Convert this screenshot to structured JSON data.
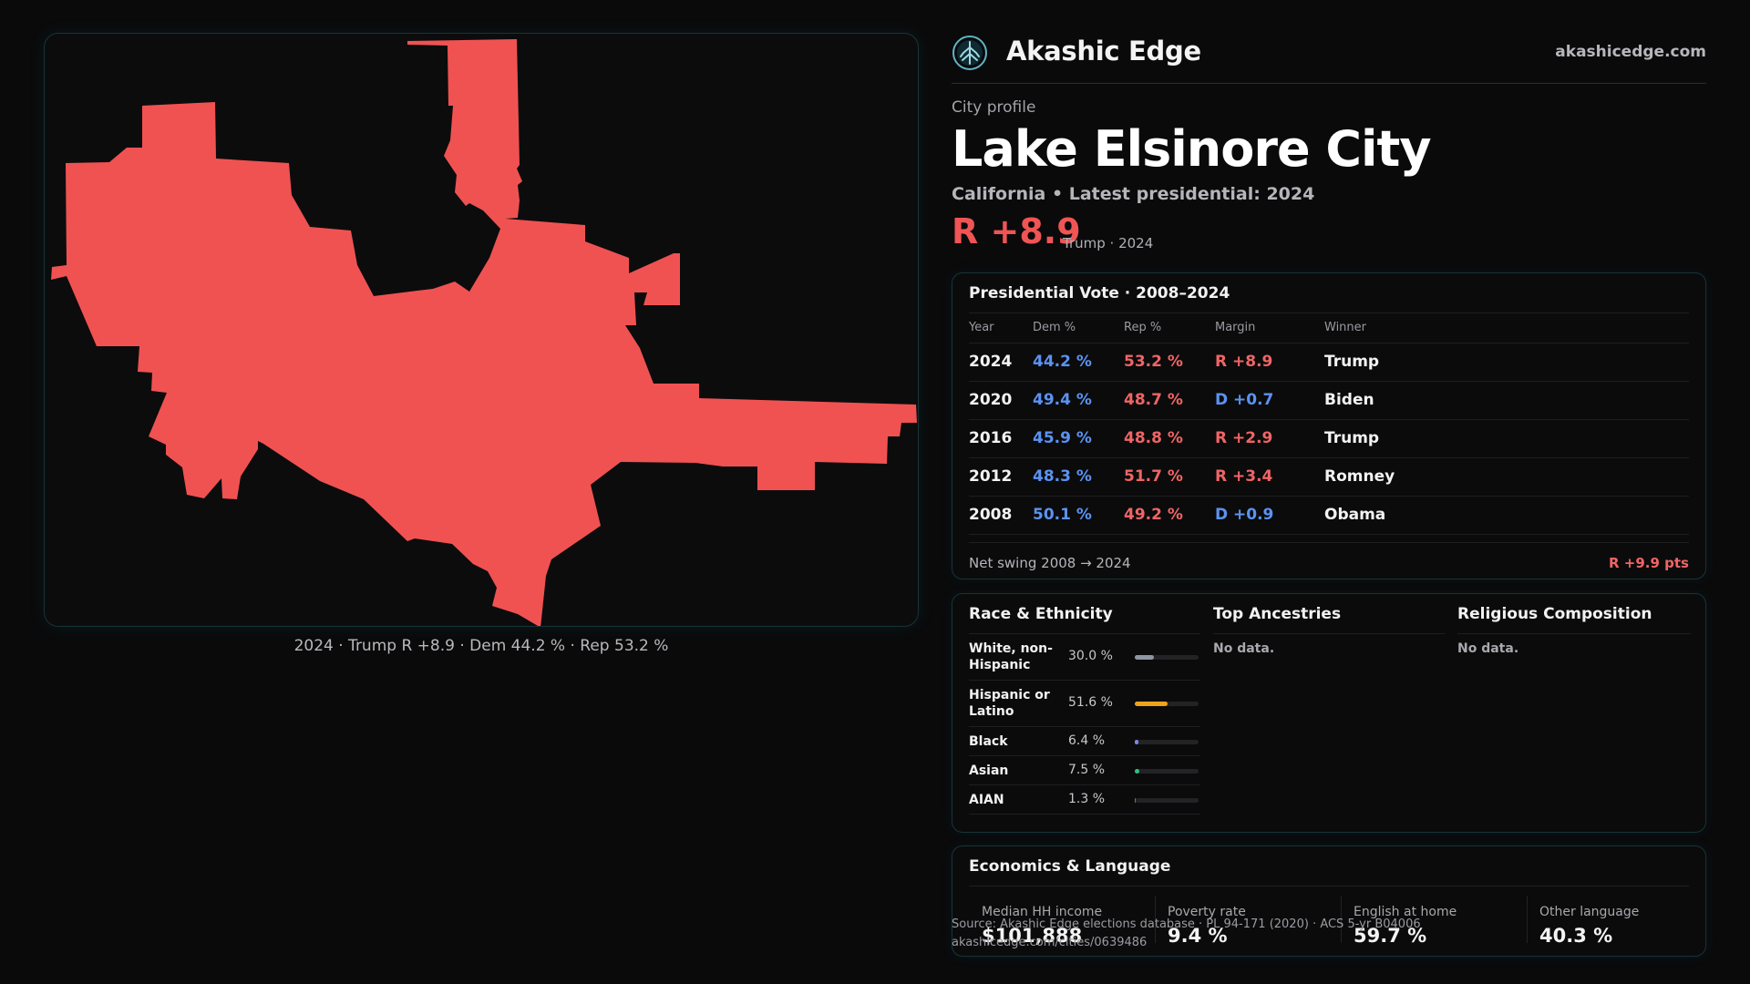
{
  "map": {
    "caption": "2024 · Trump R +8.9 · Dem 44.2 % · Rep 53.2 %",
    "fill_color": "#f05252"
  },
  "brand": {
    "logo_icon": "akashic-tree-icon",
    "name": "Akashic Edge",
    "url": "akashicedge.com"
  },
  "profile": {
    "kicker": "City profile",
    "title": "Lake Elsinore City",
    "subtitle": "California • Latest presidential: 2024",
    "margin": "R +8.9",
    "margin_note": "Trump · 2024"
  },
  "vote": {
    "title": "Presidential Vote · 2008–2024",
    "headers": [
      "Year",
      "Dem %",
      "Rep %",
      "Margin",
      "Winner"
    ],
    "rows": [
      {
        "year": "2024",
        "dem": "44.2 %",
        "rep": "53.2 %",
        "margin": "R +8.9",
        "party": "R",
        "winner": "Trump"
      },
      {
        "year": "2020",
        "dem": "49.4 %",
        "rep": "48.7 %",
        "margin": "D +0.7",
        "party": "D",
        "winner": "Biden"
      },
      {
        "year": "2016",
        "dem": "45.9 %",
        "rep": "48.8 %",
        "margin": "R +2.9",
        "party": "R",
        "winner": "Trump"
      },
      {
        "year": "2012",
        "dem": "48.3 %",
        "rep": "51.7 %",
        "margin": "R +3.4",
        "party": "R",
        "winner": "Romney"
      },
      {
        "year": "2008",
        "dem": "50.1 %",
        "rep": "49.2 %",
        "margin": "D +0.9",
        "party": "D",
        "winner": "Obama"
      }
    ],
    "swing_label": "Net swing 2008 → 2024",
    "swing_value": "R +9.9 pts"
  },
  "race": {
    "title": "Race & Ethnicity",
    "rows": [
      {
        "label": "White, non-Hispanic",
        "pct": "30.0 %",
        "fraction": 0.3,
        "color": "#8e96a3"
      },
      {
        "label": "Hispanic or Latino",
        "pct": "51.6 %",
        "fraction": 0.516,
        "color": "#f0a21a"
      },
      {
        "label": "Black",
        "pct": "6.4 %",
        "fraction": 0.064,
        "color": "#7e84e8"
      },
      {
        "label": "Asian",
        "pct": "7.5 %",
        "fraction": 0.075,
        "color": "#2ec27e"
      },
      {
        "label": "AIAN",
        "pct": "1.3 %",
        "fraction": 0.013,
        "color": "#9a6a3a"
      }
    ]
  },
  "ancestries": {
    "title": "Top Ancestries",
    "empty": "No data."
  },
  "religion": {
    "title": "Religious Composition",
    "empty": "No data."
  },
  "economics": {
    "title": "Economics & Language",
    "items": [
      {
        "label": "Median HH income",
        "value": "$101,888"
      },
      {
        "label": "Poverty rate",
        "value": "9.4 %"
      },
      {
        "label": "English at home",
        "value": "59.7 %"
      },
      {
        "label": "Other language",
        "value": "40.3 %"
      }
    ]
  },
  "footer": {
    "source": "Source: Akashic Edge elections database · PL 94-171 (2020) · ACS 5-yr B04006",
    "link": "akashicedge.com/cities/0639486"
  }
}
